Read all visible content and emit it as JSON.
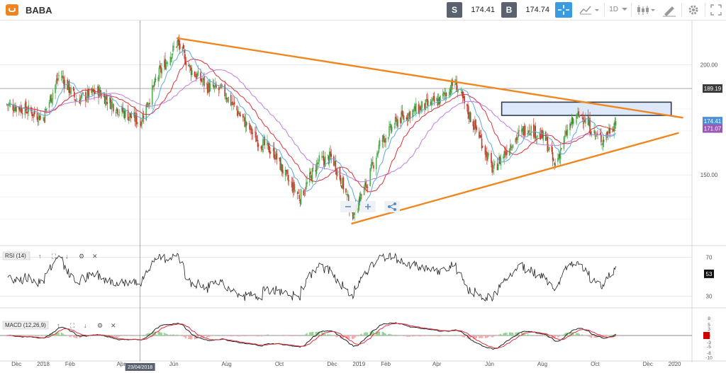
{
  "header": {
    "symbol": "BABA",
    "sell_label": "S",
    "sell_price": "174.41",
    "buy_label": "B",
    "buy_price": "174.74",
    "timeframe": "1D"
  },
  "toolbar_icons": [
    "crosshair-icon",
    "chart-type-icon",
    "timeframe-dropdown",
    "candles-icon",
    "draw-icon",
    "settings-icon",
    "fullscreen-icon"
  ],
  "colors": {
    "trendline": "#f0861e",
    "ma_blue": "#5aaae0",
    "ma_red": "#e0303a",
    "ma_purple": "#c07ce0",
    "zone_fill": "#dde9fb",
    "zone_stroke": "#2f3f4f",
    "up_candle": "#4caf50",
    "down_candle": "#c0392b"
  },
  "chart_data": [
    {
      "type": "line",
      "title": "BABA",
      "ylim": [
        118,
        220
      ],
      "ylabels": [
        "200.00",
        "150.00"
      ],
      "price_markers": [
        {
          "label": "189.19",
          "value": 189.19,
          "color": "#3a3a3a"
        },
        {
          "label": "174.41",
          "value": 174.41,
          "color": "#4a90d9"
        },
        {
          "label": "171.07",
          "value": 171.07,
          "color": "#9b59b6"
        }
      ],
      "x_tick_labels": [
        "Dec",
        "2018",
        "Feb",
        "Apr",
        "Jun",
        "Aug",
        "Oct",
        "Dec",
        "2019",
        "Feb",
        "Apr",
        "Jun",
        "Aug",
        "Oct",
        "Dec",
        "2020"
      ],
      "crosshair_date": "23/04/2018",
      "price_anchors": [
        [
          "2017-11-20",
          182
        ],
        [
          "2017-12-10",
          180
        ],
        [
          "2018-01-01",
          176
        ],
        [
          "2018-01-20",
          196
        ],
        [
          "2018-02-08",
          184
        ],
        [
          "2018-03-05",
          188
        ],
        [
          "2018-03-28",
          180
        ],
        [
          "2018-04-23",
          174
        ],
        [
          "2018-05-15",
          196
        ],
        [
          "2018-06-05",
          210
        ],
        [
          "2018-06-20",
          198
        ],
        [
          "2018-07-10",
          190
        ],
        [
          "2018-07-28",
          188
        ],
        [
          "2018-08-15",
          178
        ],
        [
          "2018-09-05",
          166
        ],
        [
          "2018-09-25",
          160
        ],
        [
          "2018-10-10",
          148
        ],
        [
          "2018-10-25",
          140
        ],
        [
          "2018-11-15",
          156
        ],
        [
          "2018-12-01",
          158
        ],
        [
          "2018-12-15",
          144
        ],
        [
          "2018-12-24",
          132
        ],
        [
          "2019-01-10",
          146
        ],
        [
          "2019-01-25",
          164
        ],
        [
          "2019-02-15",
          175
        ],
        [
          "2019-03-10",
          180
        ],
        [
          "2019-04-05",
          184
        ],
        [
          "2019-04-22",
          192
        ],
        [
          "2019-05-05",
          180
        ],
        [
          "2019-05-20",
          168
        ],
        [
          "2019-06-05",
          152
        ],
        [
          "2019-06-25",
          164
        ],
        [
          "2019-07-15",
          172
        ],
        [
          "2019-08-05",
          166
        ],
        [
          "2019-08-15",
          154
        ],
        [
          "2019-09-01",
          172
        ],
        [
          "2019-09-15",
          178
        ],
        [
          "2019-10-01",
          168
        ],
        [
          "2019-10-10",
          166
        ],
        [
          "2019-10-25",
          174.4
        ]
      ],
      "indicators": [
        {
          "name": "ma_blue",
          "color": "#5aaae0"
        },
        {
          "name": "ma_red",
          "color": "#e0303a"
        },
        {
          "name": "ma_purple",
          "color": "#c07ce0"
        }
      ],
      "trendlines": [
        {
          "from": [
            "2018-06-05",
            212
          ],
          "to": [
            "2020-01-10",
            176
          ]
        },
        {
          "from": [
            "2018-12-24",
            128
          ],
          "to": [
            "2020-01-05",
            169
          ]
        }
      ],
      "zone": {
        "from": "2019-06-15",
        "to": "2019-12-28",
        "low": 177,
        "high": 183
      },
      "reference_level": 189.19
    },
    {
      "type": "line",
      "title": "RSI (14)",
      "ylim": [
        20,
        80
      ],
      "ylabels": [
        "70",
        "30"
      ],
      "current_label": "53",
      "current_value": 53,
      "series": [
        {
          "name": "RSI (14)",
          "color": "#222222"
        }
      ]
    },
    {
      "type": "line",
      "title": "MACD (12,26,9)",
      "ylim": [
        -11,
        11
      ],
      "ylabels": [
        "8",
        "5",
        "3",
        "0",
        "-3",
        "-5",
        "-8",
        "-10"
      ],
      "series": [
        {
          "name": "MACD",
          "color": "#222222"
        },
        {
          "name": "Signal",
          "color": "#e0303a"
        }
      ]
    }
  ]
}
